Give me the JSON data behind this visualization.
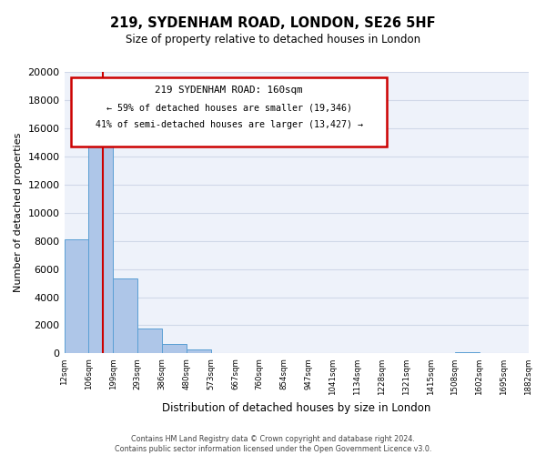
{
  "title": "219, SYDENHAM ROAD, LONDON, SE26 5HF",
  "subtitle": "Size of property relative to detached houses in London",
  "xlabel": "Distribution of detached houses by size in London",
  "ylabel": "Number of detached properties",
  "bar_values": [
    8100,
    16500,
    5300,
    1800,
    700,
    300,
    0,
    0,
    0,
    0,
    0,
    0,
    0,
    0,
    0,
    0,
    100,
    0,
    0
  ],
  "bin_labels": [
    "12sqm",
    "106sqm",
    "199sqm",
    "293sqm",
    "386sqm",
    "480sqm",
    "573sqm",
    "667sqm",
    "760sqm",
    "854sqm",
    "947sqm",
    "1041sqm",
    "1134sqm",
    "1228sqm",
    "1321sqm",
    "1415sqm",
    "1508sqm",
    "1602sqm",
    "1695sqm",
    "1882sqm"
  ],
  "bar_color": "#aec6e8",
  "bar_edge_color": "#5a9fd4",
  "vline_color": "#cc0000",
  "annotation_box_color": "#cc0000",
  "annotation_text_line1": "219 SYDENHAM ROAD: 160sqm",
  "annotation_text_line2": "← 59% of detached houses are smaller (19,346)",
  "annotation_text_line3": "41% of semi-detached houses are larger (13,427) →",
  "ylim": [
    0,
    20000
  ],
  "yticks": [
    0,
    2000,
    4000,
    6000,
    8000,
    10000,
    12000,
    14000,
    16000,
    18000,
    20000
  ],
  "grid_color": "#d0d8e8",
  "bg_color": "#eef2fa",
  "footer_line1": "Contains HM Land Registry data © Crown copyright and database right 2024.",
  "footer_line2": "Contains public sector information licensed under the Open Government Licence v3.0."
}
